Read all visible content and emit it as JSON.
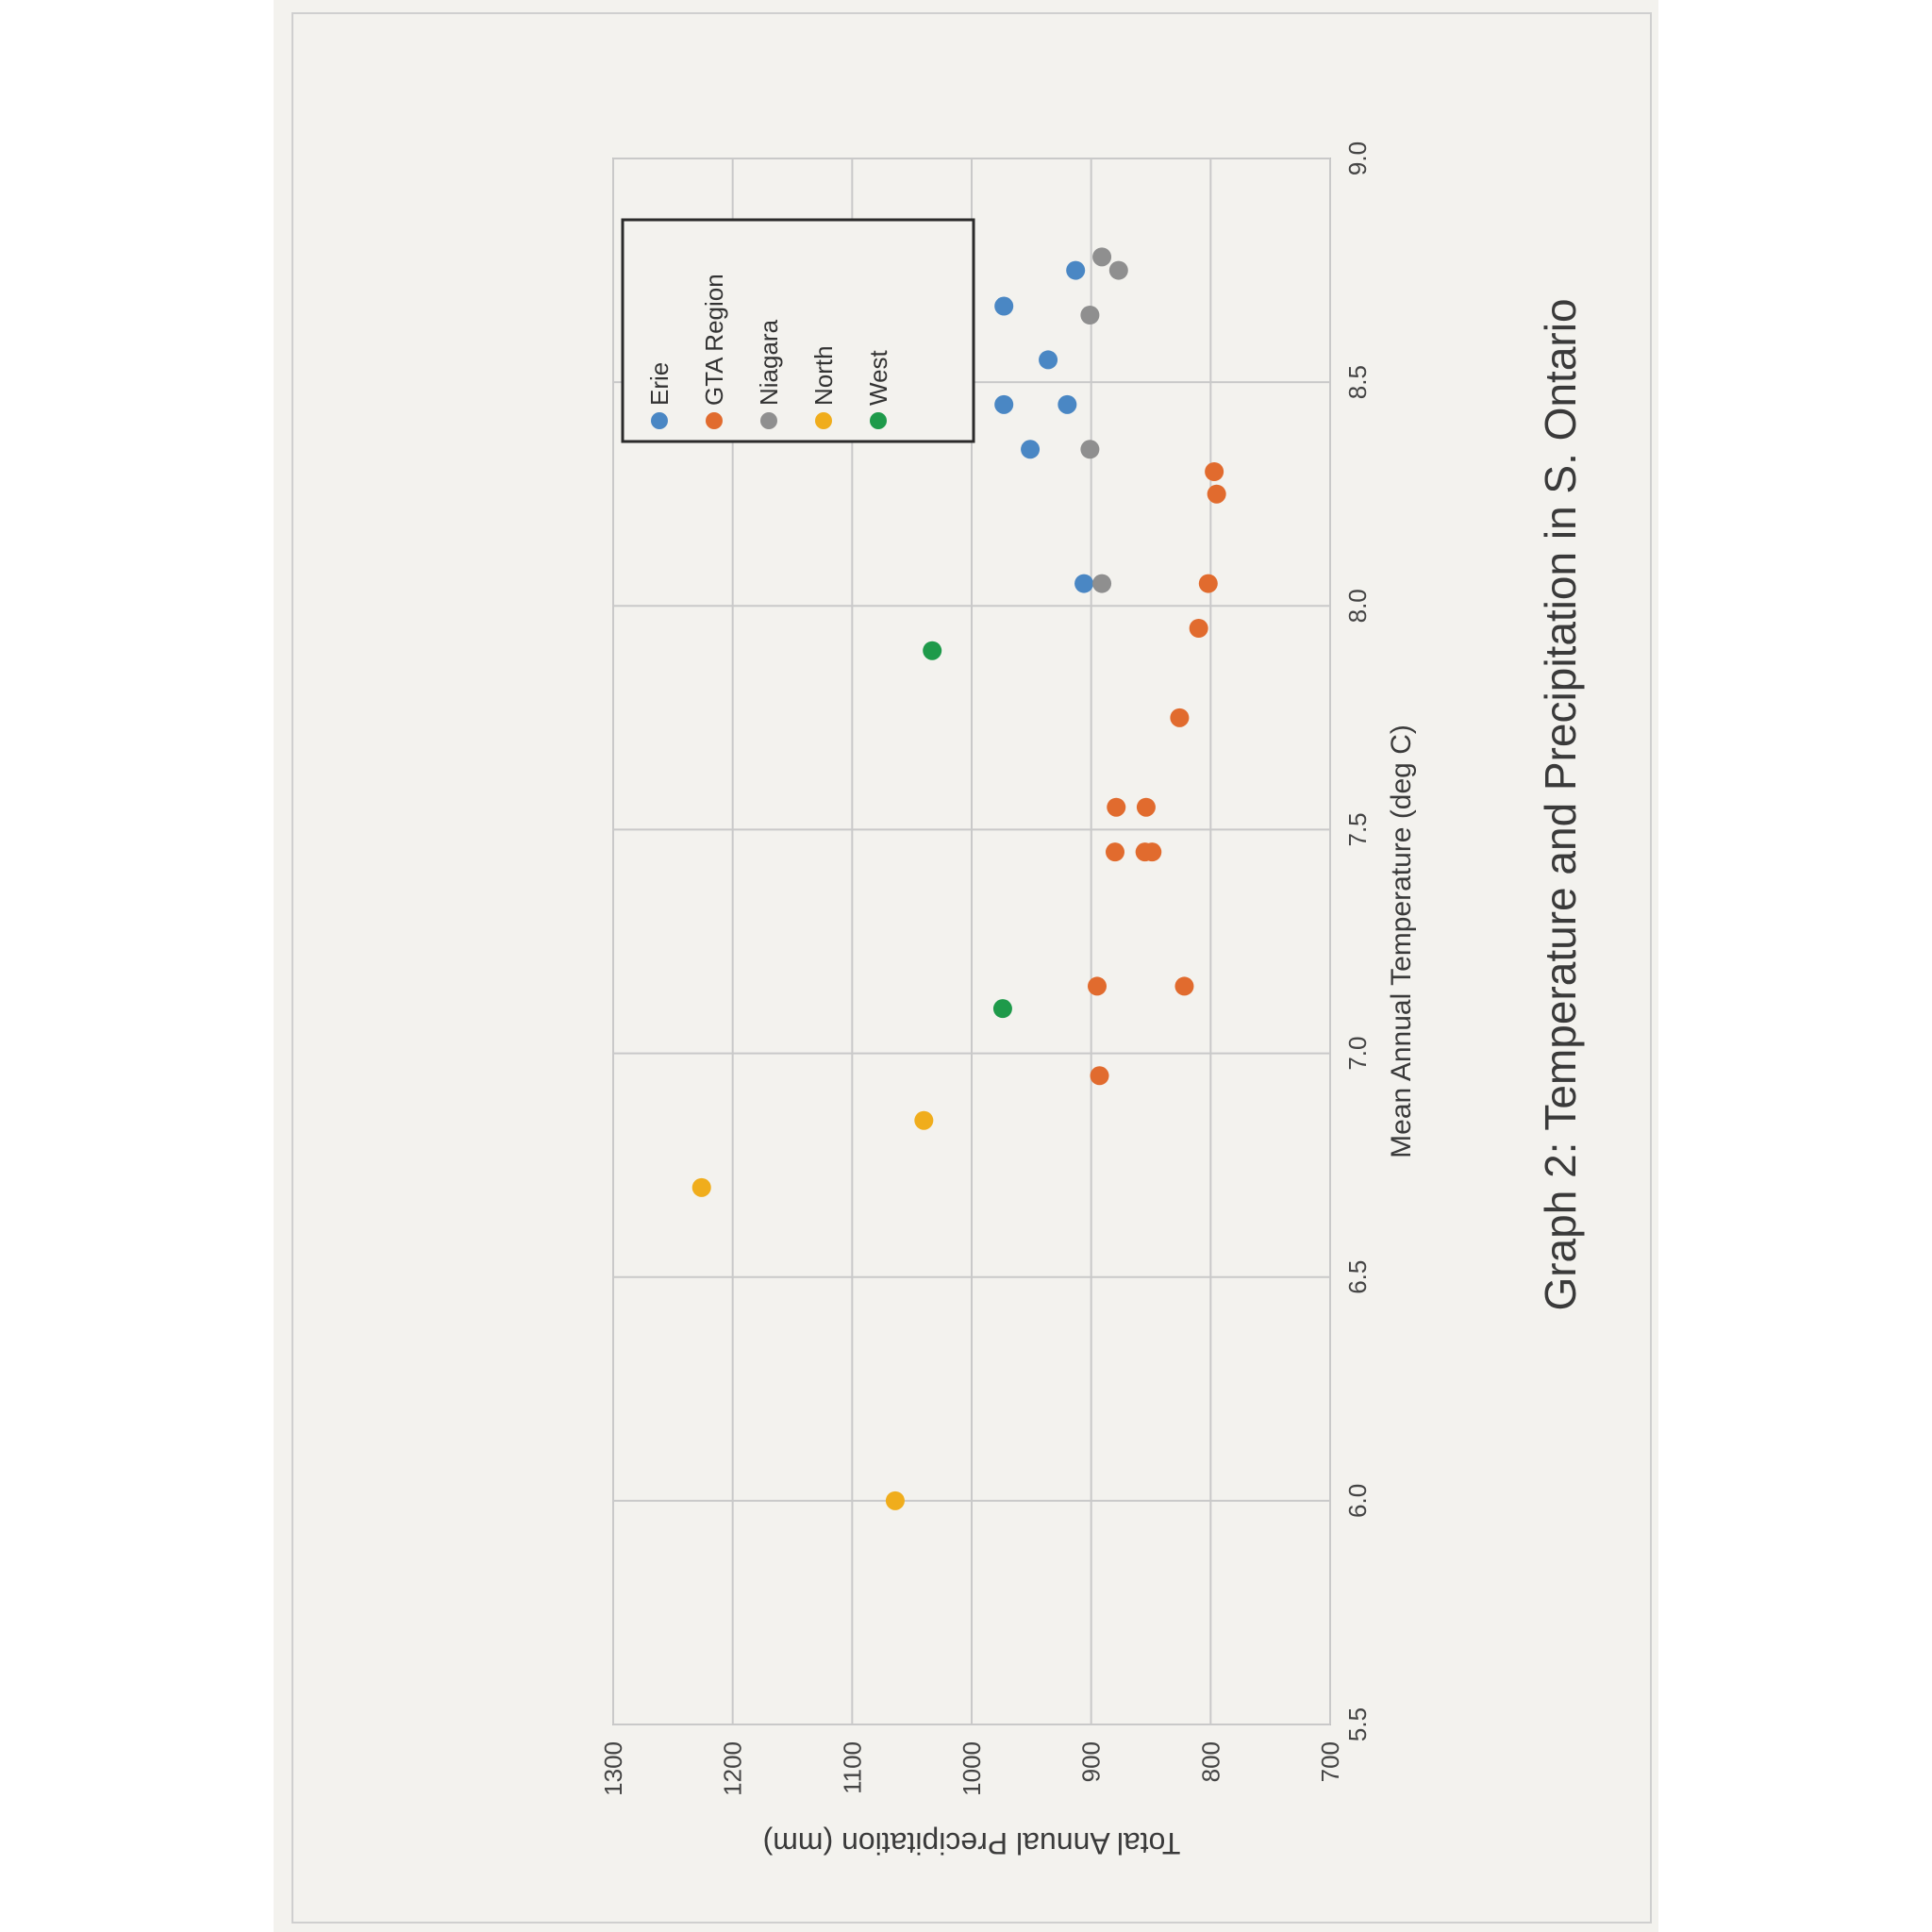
{
  "chart_data": {
    "type": "scatter",
    "title": "Graph 2: Temperature and Precipitation in S. Ontario",
    "xlabel": "Mean Annual Temperature (deg C)",
    "ylabel": "Total Annual Precipitation (mm)",
    "xlim": [
      5.5,
      9.0
    ],
    "ylim": [
      700,
      1300
    ],
    "xticks": [
      "5.5",
      "6.0",
      "6.5",
      "7.0",
      "7.5",
      "8.0",
      "8.5",
      "9.0"
    ],
    "yticks": [
      "700",
      "800",
      "900",
      "1000",
      "1100",
      "1200",
      "1300"
    ],
    "grid": true,
    "legend_position": "right",
    "series": [
      {
        "name": "Erie",
        "color": "#4a87c4",
        "points": [
          [
            8.05,
            906
          ],
          [
            8.35,
            951
          ],
          [
            8.45,
            920
          ],
          [
            8.45,
            973
          ],
          [
            8.55,
            936
          ],
          [
            8.67,
            973
          ],
          [
            8.75,
            913
          ]
        ]
      },
      {
        "name": "GTA Region",
        "color": "#e16b2e",
        "points": [
          [
            6.95,
            893
          ],
          [
            7.15,
            895
          ],
          [
            7.15,
            822
          ],
          [
            7.45,
            849
          ],
          [
            7.45,
            855
          ],
          [
            7.45,
            880
          ],
          [
            7.55,
            854
          ],
          [
            7.55,
            879
          ],
          [
            7.75,
            826
          ],
          [
            7.95,
            810
          ],
          [
            8.05,
            802
          ],
          [
            8.25,
            795
          ],
          [
            8.3,
            797
          ]
        ]
      },
      {
        "name": "Niagara",
        "color": "#8f8f8f",
        "points": [
          [
            8.05,
            891
          ],
          [
            8.35,
            901
          ],
          [
            8.65,
            901
          ],
          [
            8.75,
            877
          ],
          [
            8.78,
            891
          ]
        ]
      },
      {
        "name": "North",
        "color": "#f0ad1c",
        "points": [
          [
            6.0,
            1064
          ],
          [
            6.7,
            1226
          ],
          [
            6.85,
            1040
          ]
        ]
      },
      {
        "name": "West",
        "color": "#1e9a4a",
        "points": [
          [
            7.1,
            974
          ],
          [
            7.9,
            1033
          ]
        ]
      }
    ]
  }
}
